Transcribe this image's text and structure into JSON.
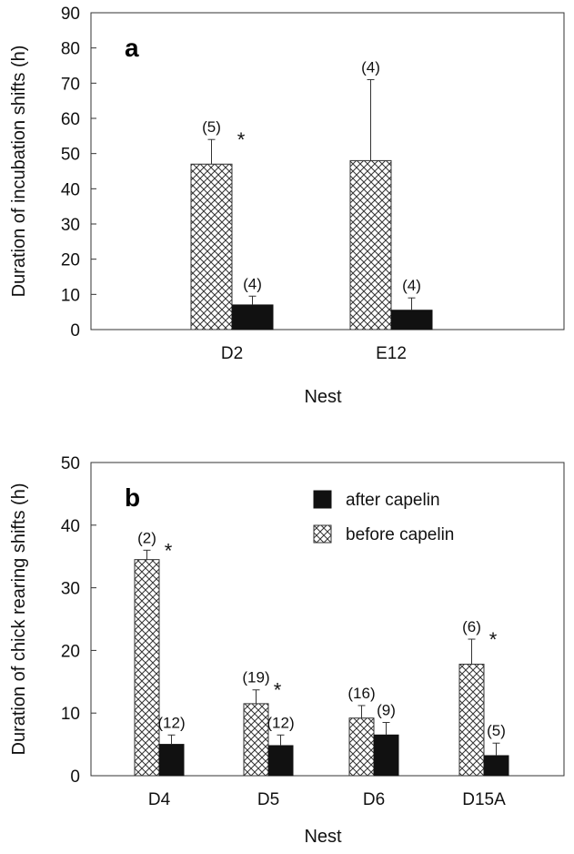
{
  "colors": {
    "after": "#111111",
    "before_stroke": "#333333",
    "frame": "#333333"
  },
  "chart_data": [
    {
      "panel": "a",
      "type": "bar",
      "xlabel": "Nest",
      "ylabel": "Duration of incubation shifts (h)",
      "ylim": [
        0,
        90
      ],
      "yticks": [
        0,
        10,
        20,
        30,
        40,
        50,
        60,
        70,
        80,
        90
      ],
      "categories": [
        "D2",
        "E12"
      ],
      "legend": null,
      "series": [
        {
          "key": "before",
          "pattern": "crosshatch",
          "values": [
            47,
            48
          ],
          "errors": [
            7,
            23
          ],
          "n_labels": [
            "(5)",
            "(4)"
          ],
          "significant": [
            true,
            false
          ]
        },
        {
          "key": "after",
          "pattern": "solid",
          "values": [
            7,
            5.5
          ],
          "errors": [
            2.5,
            3.5
          ],
          "n_labels": [
            "(4)",
            "(4)"
          ],
          "significant": [
            false,
            false
          ]
        }
      ]
    },
    {
      "panel": "b",
      "type": "bar",
      "xlabel": "Nest",
      "ylabel": "Duration of chick rearing shifts (h)",
      "ylim": [
        0,
        50
      ],
      "yticks": [
        0,
        10,
        20,
        30,
        40,
        50
      ],
      "categories": [
        "D4",
        "D5",
        "D6",
        "D15A"
      ],
      "legend": {
        "position": "top-right",
        "entries": [
          {
            "key": "after",
            "label": "after capelin"
          },
          {
            "key": "before",
            "label": "before capelin"
          }
        ]
      },
      "series": [
        {
          "key": "before",
          "pattern": "crosshatch",
          "values": [
            34.5,
            11.5,
            9.2,
            17.8
          ],
          "errors": [
            1.5,
            2.2,
            2.0,
            4.0
          ],
          "n_labels": [
            "(2)",
            "(19)",
            "(16)",
            "(6)"
          ],
          "significant": [
            true,
            true,
            false,
            true
          ]
        },
        {
          "key": "after",
          "pattern": "solid",
          "values": [
            5.0,
            4.8,
            6.5,
            3.2
          ],
          "errors": [
            1.5,
            1.7,
            2.0,
            2.0
          ],
          "n_labels": [
            "(12)",
            "(12)",
            "(9)",
            "(5)"
          ],
          "significant": [
            false,
            false,
            false,
            false
          ]
        }
      ]
    }
  ]
}
